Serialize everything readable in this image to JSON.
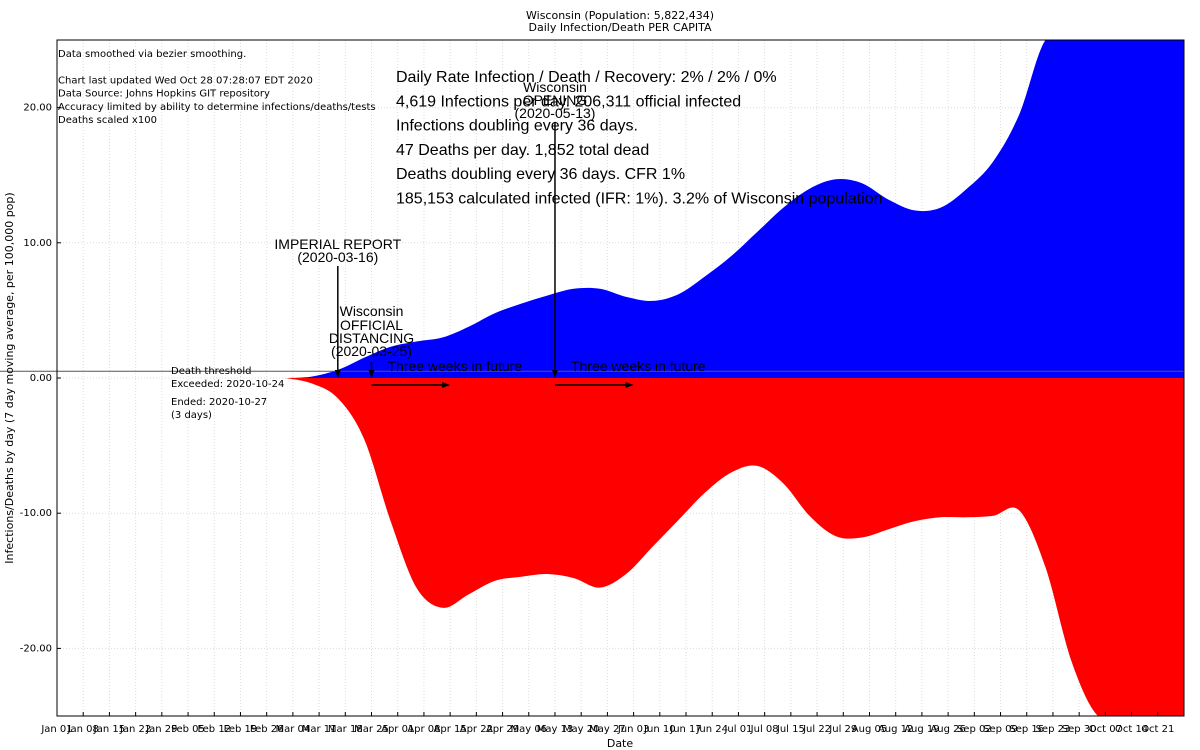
{
  "chart_data": {
    "type": "area",
    "title": "Wisconsin (Population: 5,822,434)",
    "subtitle": "Daily Infection/Death PER CAPITA",
    "xlabel": "Date",
    "ylabel": "Infections/Deaths by day (7 day moving average, per 100,000 pop)",
    "x_range": [
      "2020-01-01",
      "2020-10-28"
    ],
    "ylim": [
      -25,
      25
    ],
    "grid": true,
    "x_ticks": [
      "Jan 01",
      "Jan 08",
      "Jan 15",
      "Jan 22",
      "Jan 29",
      "Feb 05",
      "Feb 12",
      "Feb 19",
      "Feb 26",
      "Mar 04",
      "Mar 11",
      "Mar 18",
      "Mar 25",
      "Apr 01",
      "Apr 08",
      "Apr 15",
      "Apr 22",
      "Apr 29",
      "May 06",
      "May 13",
      "May 20",
      "May 27",
      "Jun 03",
      "Jun 10",
      "Jun 17",
      "Jun 24",
      "Jul 01",
      "Jul 08",
      "Jul 15",
      "Jul 22",
      "Jul 29",
      "Aug 05",
      "Aug 12",
      "Aug 19",
      "Aug 26",
      "Sep 02",
      "Sep 09",
      "Sep 16",
      "Sep 23",
      "Sep 30",
      "Oct 07",
      "Oct 14",
      "Oct 21"
    ],
    "y_ticks": [
      "20.00",
      "10.00",
      "0.00",
      "-10.00",
      "-20.00"
    ],
    "y_tick_values": [
      20,
      10,
      0,
      -10,
      -20
    ],
    "series": [
      {
        "color": "#0000ff",
        "x": [
          "2020-03-02",
          "2020-03-09",
          "2020-03-16",
          "2020-03-23",
          "2020-03-30",
          "2020-04-06",
          "2020-04-13",
          "2020-04-20",
          "2020-04-27",
          "2020-05-04",
          "2020-05-11",
          "2020-05-18",
          "2020-05-25",
          "2020-06-01",
          "2020-06-08",
          "2020-06-15",
          "2020-06-22",
          "2020-06-29",
          "2020-07-06",
          "2020-07-13",
          "2020-07-20",
          "2020-07-27",
          "2020-08-03",
          "2020-08-10",
          "2020-08-17",
          "2020-08-24",
          "2020-08-31",
          "2020-09-07",
          "2020-09-14",
          "2020-09-21",
          "2020-09-28",
          "2020-10-05",
          "2020-10-12",
          "2020-10-19",
          "2020-10-27"
        ],
        "y": [
          0,
          0.1,
          0.6,
          1.5,
          2.3,
          2.7,
          3.0,
          3.8,
          4.8,
          5.5,
          6.1,
          6.6,
          6.6,
          6.0,
          5.7,
          6.2,
          7.5,
          9.0,
          10.8,
          12.6,
          14.0,
          14.7,
          14.4,
          13.2,
          12.4,
          12.6,
          14.0,
          16.0,
          19.5,
          25.0,
          25.0,
          25.0,
          25.0,
          25.0,
          25.0
        ]
      },
      {
        "color": "#ff0000",
        "x": [
          "2020-03-02",
          "2020-03-09",
          "2020-03-16",
          "2020-03-23",
          "2020-03-30",
          "2020-04-06",
          "2020-04-13",
          "2020-04-20",
          "2020-04-27",
          "2020-05-04",
          "2020-05-11",
          "2020-05-18",
          "2020-05-25",
          "2020-06-01",
          "2020-06-08",
          "2020-06-15",
          "2020-06-22",
          "2020-06-29",
          "2020-07-06",
          "2020-07-13",
          "2020-07-20",
          "2020-07-27",
          "2020-08-03",
          "2020-08-10",
          "2020-08-17",
          "2020-08-24",
          "2020-08-31",
          "2020-09-07",
          "2020-09-14",
          "2020-09-21",
          "2020-09-28",
          "2020-10-05",
          "2020-10-12",
          "2020-10-19",
          "2020-10-27"
        ],
        "y": [
          0,
          -0.4,
          -1.5,
          -4.5,
          -10.5,
          -15.5,
          -17.0,
          -16.0,
          -15.0,
          -14.7,
          -14.5,
          -14.8,
          -15.5,
          -14.5,
          -12.5,
          -10.5,
          -8.5,
          -7.0,
          -6.5,
          -7.8,
          -10.2,
          -11.7,
          -11.8,
          -11.2,
          -10.6,
          -10.3,
          -10.3,
          -10.2,
          -9.8,
          -14.0,
          -21.0,
          -25.0,
          -25.0,
          -25.0,
          -25.0
        ]
      }
    ],
    "threshold_line_y": 0.5,
    "annotations": {
      "info_lines": [
        "Data smoothed via bezier smoothing.",
        "",
        "Chart last updated Wed Oct 28 07:28:07 EDT 2020",
        "Data Source: Johns Hopkins GIT repository",
        "Accuracy limited by ability to determine infections/deaths/tests",
        "Deaths scaled x100"
      ],
      "stats_lines": [
        "Daily Rate Infection / Death / Recovery: 2% / 2% / 0%",
        "4,619 Infections per day.  206,311 official infected",
        "Infections doubling every 36 days.",
        "47 Deaths per day.  1,852 total dead",
        "Deaths doubling every 36 days.  CFR 1%",
        "185,153 calculated infected (IFR: 1%).  3.2% of Wisconsin population"
      ],
      "imperial": {
        "date": "2020-03-16",
        "line1": "IMPERIAL REPORT",
        "line2": "(2020-03-16)"
      },
      "distancing": {
        "date": "2020-03-25",
        "line1": "Wisconsin",
        "line2": "OFFICIAL",
        "line3": "DISTANCING",
        "line4": "(2020-03-25)"
      },
      "opening": {
        "date": "2020-05-13",
        "line1": "Wisconsin",
        "line2": "OPENING",
        "line3": "(2020-05-13)"
      },
      "three_weeks": "Three weeks in future",
      "death_threshold": {
        "line1": "Death threshold",
        "line2": "Exceeded: 2020-10-24",
        "line3": "Ended: 2020-10-27",
        "line4": "(3 days)"
      }
    }
  }
}
